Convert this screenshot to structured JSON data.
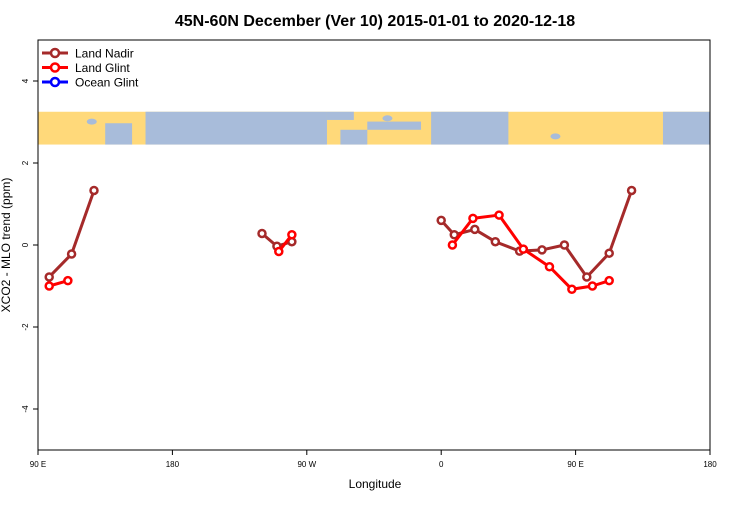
{
  "chart_data": {
    "type": "line",
    "title": "45N-60N December (Ver 10)   2015-01-01 to 2020-12-18",
    "xlabel": "Longitude",
    "ylabel": "XCO2 - MLO trend (ppm)",
    "xlim": [
      90,
      450
    ],
    "ylim": [
      -5,
      5
    ],
    "x_ticks": [
      {
        "value": 90,
        "label": "90 E"
      },
      {
        "value": 162,
        "label": "180"
      },
      {
        "value": 234,
        "label": "90 W"
      },
      {
        "value": 306,
        "label": "0"
      },
      {
        "value": 378,
        "label": "90 E"
      },
      {
        "value": 450,
        "label": "180"
      }
    ],
    "y_ticks": [
      {
        "value": -4,
        "label": "-4"
      },
      {
        "value": -2,
        "label": "-2"
      },
      {
        "value": 0,
        "label": "0"
      },
      {
        "value": 2,
        "label": "2"
      },
      {
        "value": 4,
        "label": "4"
      }
    ],
    "legend_position": "top-left",
    "map_strip": {
      "y_top": 3.25,
      "y_bottom": 2.45,
      "land_color": "#FFD97A",
      "ocean_color": "#A8BCDA"
    },
    "series": [
      {
        "name": "Land Nadir",
        "color": "#A52A2A",
        "segments": [
          [
            [
              96,
              -0.78
            ],
            [
              108,
              -0.22
            ],
            [
              120,
              1.33
            ]
          ],
          [
            [
              210,
              0.28
            ],
            [
              218,
              -0.03
            ],
            [
              226,
              0.08
            ]
          ],
          [
            [
              306,
              0.6
            ],
            [
              313,
              0.25
            ],
            [
              324,
              0.38
            ],
            [
              335,
              0.08
            ],
            [
              348,
              -0.15
            ],
            [
              360,
              -0.12
            ],
            [
              372,
              0.0
            ],
            [
              384,
              -0.78
            ],
            [
              396,
              -0.2
            ],
            [
              408,
              1.33
            ]
          ]
        ]
      },
      {
        "name": "Land Glint",
        "color": "#FF0000",
        "segments": [
          [
            [
              96,
              -1.0
            ],
            [
              106,
              -0.87
            ]
          ],
          [
            [
              219,
              -0.16
            ],
            [
              226,
              0.25
            ]
          ],
          [
            [
              312,
              0.0
            ],
            [
              323,
              0.65
            ],
            [
              337,
              0.73
            ],
            [
              350,
              -0.1
            ],
            [
              364,
              -0.53
            ],
            [
              376,
              -1.08
            ],
            [
              387,
              -1.0
            ],
            [
              396,
              -0.87
            ]
          ]
        ]
      },
      {
        "name": "Ocean Glint",
        "color": "#0000FF",
        "segments": []
      }
    ]
  }
}
